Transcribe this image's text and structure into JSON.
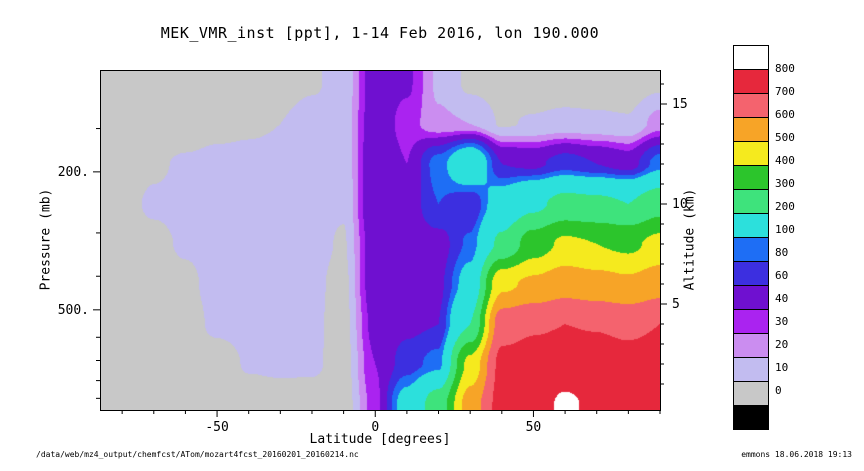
{
  "title": "MEK_VMR_inst [ppt], 1-14 Feb 2016, lon 190.000",
  "footer": {
    "file_path": "/data/web/mz4_output/chemfcst/ATom/mozart4fcst_20160201_20160214.nc",
    "stamp": "emmons 18.06.2018 19:13"
  },
  "axes": {
    "x": {
      "label": "Latitude [degrees]",
      "min": -87,
      "max": 90,
      "major_ticks": [
        -50,
        0,
        50
      ],
      "minor_step": 10
    },
    "y_left": {
      "label": "Pressure (mb)",
      "major_ticks": [
        "200.",
        "500."
      ],
      "major_pressures": [
        200,
        500
      ],
      "minor_pressures": [
        150,
        300,
        400,
        600,
        700,
        800,
        900
      ]
    },
    "y_right": {
      "label": "Altitude (km)",
      "major_ticks": [
        5,
        10,
        15
      ],
      "minor_step": 1,
      "max_km": 16
    }
  },
  "colorbar": {
    "levels": [
      0,
      10,
      20,
      30,
      40,
      60,
      80,
      100,
      200,
      300,
      400,
      500,
      600,
      700,
      800
    ],
    "colors": [
      "#000000",
      "#c8c8c8",
      "#c2bcf0",
      "#cb8df0",
      "#aa23f0",
      "#6f10d0",
      "#3c2fe0",
      "#1e6ef5",
      "#2ce0dc",
      "#3ee37c",
      "#2cc52c",
      "#f5ea1e",
      "#f7a427",
      "#f4636e",
      "#e6283c",
      "#ffffff"
    ]
  },
  "chart_data": {
    "type": "heatmap",
    "title": "MEK_VMR_inst [ppt], 1-14 Feb 2016, lon 190.000",
    "units": "ppt",
    "xlabel": "Latitude [degrees]",
    "ylabel_left": "Pressure (mb)",
    "ylabel_right": "Altitude (km)",
    "contour_levels": [
      0,
      10,
      20,
      30,
      40,
      60,
      80,
      100,
      200,
      300,
      400,
      500,
      600,
      700,
      800
    ],
    "lat_axis_range": [
      -87,
      90
    ],
    "alt_axis_range_km": [
      -0.3,
      16.7
    ],
    "lat_grid": [
      -90,
      -80,
      -70,
      -60,
      -50,
      -40,
      -30,
      -20,
      -10,
      0,
      10,
      20,
      30,
      40,
      50,
      60,
      70,
      80,
      90
    ],
    "alt_grid_km": [
      0,
      2,
      4,
      6,
      8,
      10,
      12,
      14,
      16
    ],
    "values_ppt": [
      [
        3,
        3,
        3,
        3,
        4,
        4,
        5,
        4,
        4,
        35,
        120,
        250,
        550,
        740,
        760,
        815,
        780,
        770,
        790
      ],
      [
        3,
        3,
        3,
        4,
        5,
        11,
        12,
        12,
        5,
        40,
        70,
        90,
        430,
        730,
        740,
        750,
        745,
        735,
        745
      ],
      [
        3,
        3,
        4,
        6,
        12,
        13,
        13,
        12,
        6,
        45,
        55,
        60,
        200,
        660,
        690,
        700,
        695,
        680,
        700
      ],
      [
        3,
        4,
        5,
        8,
        13,
        14,
        13,
        12,
        7,
        50,
        50,
        55,
        120,
        480,
        520,
        560,
        540,
        520,
        560
      ],
      [
        3,
        6,
        8,
        11,
        13,
        14,
        13,
        13,
        9,
        50,
        45,
        50,
        85,
        220,
        350,
        420,
        400,
        380,
        430
      ],
      [
        3,
        8,
        11,
        12,
        13,
        13,
        13,
        13,
        11,
        55,
        45,
        80,
        60,
        130,
        180,
        230,
        220,
        200,
        260
      ],
      [
        3,
        6,
        9,
        11,
        12,
        12,
        12,
        13,
        12,
        55,
        40,
        90,
        150,
        60,
        55,
        70,
        60,
        50,
        90
      ],
      [
        3,
        4,
        5,
        6,
        8,
        9,
        10,
        14,
        14,
        50,
        35,
        22,
        20,
        9,
        11,
        13,
        12,
        11,
        25
      ],
      [
        2,
        3,
        3,
        4,
        5,
        6,
        7,
        9,
        13,
        48,
        42,
        18,
        8,
        6,
        5,
        5,
        5,
        5,
        8
      ]
    ]
  }
}
